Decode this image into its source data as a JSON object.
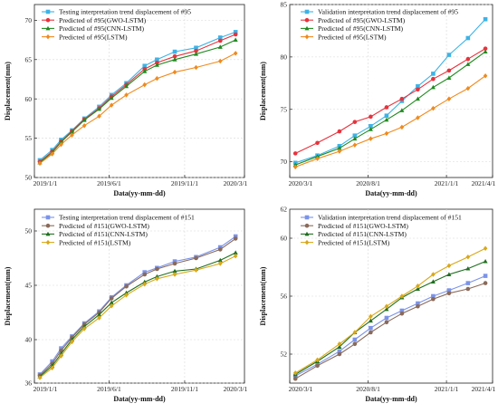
{
  "chart_data": [
    {
      "type": "line",
      "xlabel": "Data(yy-mm-dd)",
      "ylabel": "Displacement(mm)",
      "xlim": [
        "2019-01-01",
        "2020-03-01"
      ],
      "ylim": [
        50,
        72
      ],
      "xticks": [
        "2019/1/1",
        "2019/6/1",
        "2019/11/1",
        "2020/3/1"
      ],
      "yticks": [
        50,
        55,
        60,
        65,
        70
      ],
      "legend_position": "top-left",
      "grid": true,
      "series": [
        {
          "name": "Testing interpretation trend displacement of #95",
          "color": "#3db3e6",
          "marker": "square",
          "x": [
            "2019-01-12",
            "2019-02-06",
            "2019-02-24",
            "2019-03-18",
            "2019-04-12",
            "2019-05-12",
            "2019-06-06",
            "2019-07-06",
            "2019-08-12",
            "2019-09-06",
            "2019-10-12",
            "2019-11-24",
            "2020-01-12",
            "2020-02-12"
          ],
          "y": [
            52.2,
            53.5,
            54.8,
            56.0,
            57.5,
            59.0,
            60.5,
            62.0,
            64.2,
            65.0,
            66.0,
            66.5,
            67.8,
            68.5
          ]
        },
        {
          "name": "Predicted of #95(GWO-LSTM)",
          "color": "#e8323c",
          "marker": "circle",
          "x": [
            "2019-01-12",
            "2019-02-06",
            "2019-02-24",
            "2019-03-18",
            "2019-04-12",
            "2019-05-12",
            "2019-06-06",
            "2019-07-06",
            "2019-08-12",
            "2019-09-06",
            "2019-10-12",
            "2019-11-24",
            "2020-01-12",
            "2020-02-12"
          ],
          "y": [
            52.0,
            53.3,
            54.6,
            55.9,
            57.4,
            58.8,
            60.3,
            61.8,
            63.8,
            64.6,
            65.4,
            66.1,
            67.4,
            68.2
          ]
        },
        {
          "name": "Predicted of #95(CNN-LSTM)",
          "color": "#1f8a1f",
          "marker": "triangle",
          "x": [
            "2019-01-12",
            "2019-02-06",
            "2019-02-24",
            "2019-03-18",
            "2019-04-12",
            "2019-05-12",
            "2019-06-06",
            "2019-07-06",
            "2019-08-12",
            "2019-09-06",
            "2019-10-12",
            "2019-11-24",
            "2020-01-12",
            "2020-02-12"
          ],
          "y": [
            51.9,
            53.2,
            54.5,
            55.8,
            57.3,
            58.7,
            60.1,
            61.6,
            63.5,
            64.3,
            65.0,
            65.7,
            66.6,
            67.5
          ]
        },
        {
          "name": "Predicted of #95(LSTM)",
          "color": "#f08a1c",
          "marker": "diamond",
          "x": [
            "2019-01-12",
            "2019-02-06",
            "2019-02-24",
            "2019-03-18",
            "2019-04-12",
            "2019-05-12",
            "2019-06-06",
            "2019-07-06",
            "2019-08-12",
            "2019-09-06",
            "2019-10-12",
            "2019-11-24",
            "2020-01-12",
            "2020-02-12"
          ],
          "y": [
            51.8,
            53.0,
            54.2,
            55.4,
            56.6,
            57.8,
            59.2,
            60.5,
            61.8,
            62.6,
            63.4,
            64.0,
            64.8,
            65.8
          ]
        }
      ]
    },
    {
      "type": "line",
      "xlabel": "Data(yy-mm-dd)",
      "ylabel": "Displacement(mm)",
      "xlim": [
        "2020-03-01",
        "2021-04-01"
      ],
      "ylim": [
        68.5,
        85
      ],
      "xticks": [
        "2020/3/1",
        "2020/8/1",
        "2021/1/1",
        "2021/4/1"
      ],
      "yticks": [
        70,
        75,
        80,
        85
      ],
      "legend_position": "top-left",
      "grid": true,
      "series": [
        {
          "name": "Validation interpretation trend displacement of #95",
          "color": "#3db3e6",
          "marker": "square",
          "x": [
            "2020-03-12",
            "2020-04-24",
            "2020-06-06",
            "2020-07-06",
            "2020-08-06",
            "2020-09-06",
            "2020-10-06",
            "2020-11-06",
            "2020-12-06",
            "2021-01-06",
            "2021-02-12",
            "2021-03-18"
          ],
          "y": [
            69.9,
            70.6,
            71.5,
            72.5,
            73.4,
            74.4,
            75.8,
            77.2,
            78.4,
            80.2,
            81.8,
            83.6
          ]
        },
        {
          "name": "Predicted of #95(GWO-LSTM)",
          "color": "#e8323c",
          "marker": "circle",
          "x": [
            "2020-03-12",
            "2020-04-24",
            "2020-06-06",
            "2020-07-06",
            "2020-08-06",
            "2020-09-06",
            "2020-10-06",
            "2020-11-06",
            "2020-12-06",
            "2021-01-06",
            "2021-02-12",
            "2021-03-18"
          ],
          "y": [
            70.8,
            71.8,
            72.9,
            73.8,
            74.3,
            75.2,
            76.0,
            76.9,
            77.9,
            78.7,
            79.8,
            80.8
          ]
        },
        {
          "name": "Predicted of #95(CNN-LSTM)",
          "color": "#1f8a1f",
          "marker": "triangle",
          "x": [
            "2020-03-12",
            "2020-04-24",
            "2020-06-06",
            "2020-07-06",
            "2020-08-06",
            "2020-09-06",
            "2020-10-06",
            "2020-11-06",
            "2020-12-06",
            "2021-01-06",
            "2021-02-12",
            "2021-03-18"
          ],
          "y": [
            69.7,
            70.5,
            71.3,
            72.2,
            73.1,
            74.0,
            74.9,
            76.0,
            77.1,
            78.0,
            79.3,
            80.5
          ]
        },
        {
          "name": "Predicted of #95(LSTM)",
          "color": "#f08a1c",
          "marker": "diamond",
          "x": [
            "2020-03-12",
            "2020-04-24",
            "2020-06-06",
            "2020-07-06",
            "2020-08-06",
            "2020-09-06",
            "2020-10-06",
            "2020-11-06",
            "2020-12-06",
            "2021-01-06",
            "2021-02-12",
            "2021-03-18"
          ],
          "y": [
            69.5,
            70.3,
            71.0,
            71.6,
            72.2,
            72.7,
            73.3,
            74.2,
            75.1,
            76.0,
            77.0,
            78.2
          ]
        }
      ]
    },
    {
      "type": "line",
      "xlabel": "Data(yy-mm-dd)",
      "ylabel": "Displacement(mm)",
      "xlim": [
        "2019-01-01",
        "2020-03-01"
      ],
      "ylim": [
        36,
        52
      ],
      "xticks": [
        "2019/1/1",
        "2019/6/1",
        "2019/11/1",
        "2020/3/1"
      ],
      "yticks": [
        36,
        40,
        45,
        50
      ],
      "legend_position": "top-left",
      "grid": true,
      "series": [
        {
          "name": "Testing interpretation trend displacement of #151",
          "color": "#7b93e8",
          "marker": "square",
          "x": [
            "2019-01-12",
            "2019-02-06",
            "2019-02-24",
            "2019-03-18",
            "2019-04-12",
            "2019-05-12",
            "2019-06-06",
            "2019-07-06",
            "2019-08-12",
            "2019-09-06",
            "2019-10-12",
            "2019-11-24",
            "2020-01-12",
            "2020-02-12"
          ],
          "y": [
            36.8,
            38.0,
            39.2,
            40.3,
            41.5,
            42.6,
            43.9,
            45.0,
            46.2,
            46.6,
            47.2,
            47.6,
            48.5,
            49.5
          ]
        },
        {
          "name": "Predicted of #151(GWO-LSTM)",
          "color": "#8a6a5a",
          "marker": "circle",
          "x": [
            "2019-01-12",
            "2019-02-06",
            "2019-02-24",
            "2019-03-18",
            "2019-04-12",
            "2019-05-12",
            "2019-06-06",
            "2019-07-06",
            "2019-08-12",
            "2019-09-06",
            "2019-10-12",
            "2019-11-24",
            "2020-01-12",
            "2020-02-12"
          ],
          "y": [
            36.7,
            37.8,
            39.0,
            40.2,
            41.4,
            42.5,
            43.8,
            44.9,
            46.0,
            46.5,
            47.0,
            47.5,
            48.3,
            49.3
          ]
        },
        {
          "name": "Predicted of #151(CNN-LSTM)",
          "color": "#1f6f1f",
          "marker": "triangle",
          "x": [
            "2019-01-12",
            "2019-02-06",
            "2019-02-24",
            "2019-03-18",
            "2019-04-12",
            "2019-05-12",
            "2019-06-06",
            "2019-07-06",
            "2019-08-12",
            "2019-09-06",
            "2019-10-12",
            "2019-11-24",
            "2020-01-12",
            "2020-02-12"
          ],
          "y": [
            36.6,
            37.6,
            38.7,
            40.0,
            41.2,
            42.3,
            43.4,
            44.3,
            45.3,
            45.8,
            46.3,
            46.5,
            47.3,
            48.0
          ]
        },
        {
          "name": "Predicted of #151(LSTM)",
          "color": "#d9a818",
          "marker": "diamond",
          "x": [
            "2019-01-12",
            "2019-02-06",
            "2019-02-24",
            "2019-03-18",
            "2019-04-12",
            "2019-05-12",
            "2019-06-06",
            "2019-07-06",
            "2019-08-12",
            "2019-09-06",
            "2019-10-12",
            "2019-11-24",
            "2020-01-12",
            "2020-02-12"
          ],
          "y": [
            36.5,
            37.4,
            38.5,
            39.8,
            41.0,
            42.0,
            43.1,
            44.1,
            45.1,
            45.6,
            46.0,
            46.4,
            47.0,
            47.7
          ]
        }
      ]
    },
    {
      "type": "line",
      "xlabel": "Data(yy-mm-dd)",
      "ylabel": "Displacement(mm)",
      "xlim": [
        "2020-03-01",
        "2021-04-01"
      ],
      "ylim": [
        50,
        62
      ],
      "xticks": [
        "2020/3/1",
        "2020/8/1",
        "2021/1/1",
        "2021/4/1"
      ],
      "yticks": [
        52,
        56,
        60
      ],
      "extra_ytick_labels": [
        "62"
      ],
      "legend_position": "top-left",
      "grid": true,
      "series": [
        {
          "name": "Validation interpretation trend displacement of #151",
          "color": "#7b93e8",
          "marker": "square",
          "x": [
            "2020-03-12",
            "2020-04-24",
            "2020-06-06",
            "2020-07-06",
            "2020-08-06",
            "2020-09-06",
            "2020-10-06",
            "2020-11-06",
            "2020-12-06",
            "2021-01-06",
            "2021-02-12",
            "2021-03-18"
          ],
          "y": [
            50.5,
            51.3,
            52.2,
            53.0,
            53.8,
            54.5,
            55.0,
            55.5,
            56.0,
            56.4,
            56.9,
            57.4
          ]
        },
        {
          "name": "Predicted of #151(GWO-LSTM)",
          "color": "#8a6a5a",
          "marker": "circle",
          "x": [
            "2020-03-12",
            "2020-04-24",
            "2020-06-06",
            "2020-07-06",
            "2020-08-06",
            "2020-09-06",
            "2020-10-06",
            "2020-11-06",
            "2020-12-06",
            "2021-01-06",
            "2021-02-12",
            "2021-03-18"
          ],
          "y": [
            50.3,
            51.2,
            52.0,
            52.7,
            53.5,
            54.2,
            54.8,
            55.3,
            55.8,
            56.2,
            56.5,
            56.9
          ]
        },
        {
          "name": "Predicted of #151(CNN-LSTM)",
          "color": "#1f6f1f",
          "marker": "triangle",
          "x": [
            "2020-03-12",
            "2020-04-24",
            "2020-06-06",
            "2020-07-06",
            "2020-08-06",
            "2020-09-06",
            "2020-10-06",
            "2020-11-06",
            "2020-12-06",
            "2021-01-06",
            "2021-02-12",
            "2021-03-18"
          ],
          "y": [
            50.6,
            51.5,
            52.5,
            53.5,
            54.3,
            55.1,
            55.9,
            56.5,
            57.0,
            57.5,
            57.9,
            58.4
          ]
        },
        {
          "name": "Predicted of #151(LSTM)",
          "color": "#d9a818",
          "marker": "diamond",
          "x": [
            "2020-03-12",
            "2020-04-24",
            "2020-06-06",
            "2020-07-06",
            "2020-08-06",
            "2020-09-06",
            "2020-10-06",
            "2020-11-06",
            "2020-12-06",
            "2021-01-06",
            "2021-02-12",
            "2021-03-18"
          ],
          "y": [
            50.7,
            51.6,
            52.7,
            53.5,
            54.6,
            55.3,
            56.0,
            56.7,
            57.5,
            58.1,
            58.7,
            59.3
          ]
        }
      ]
    }
  ]
}
